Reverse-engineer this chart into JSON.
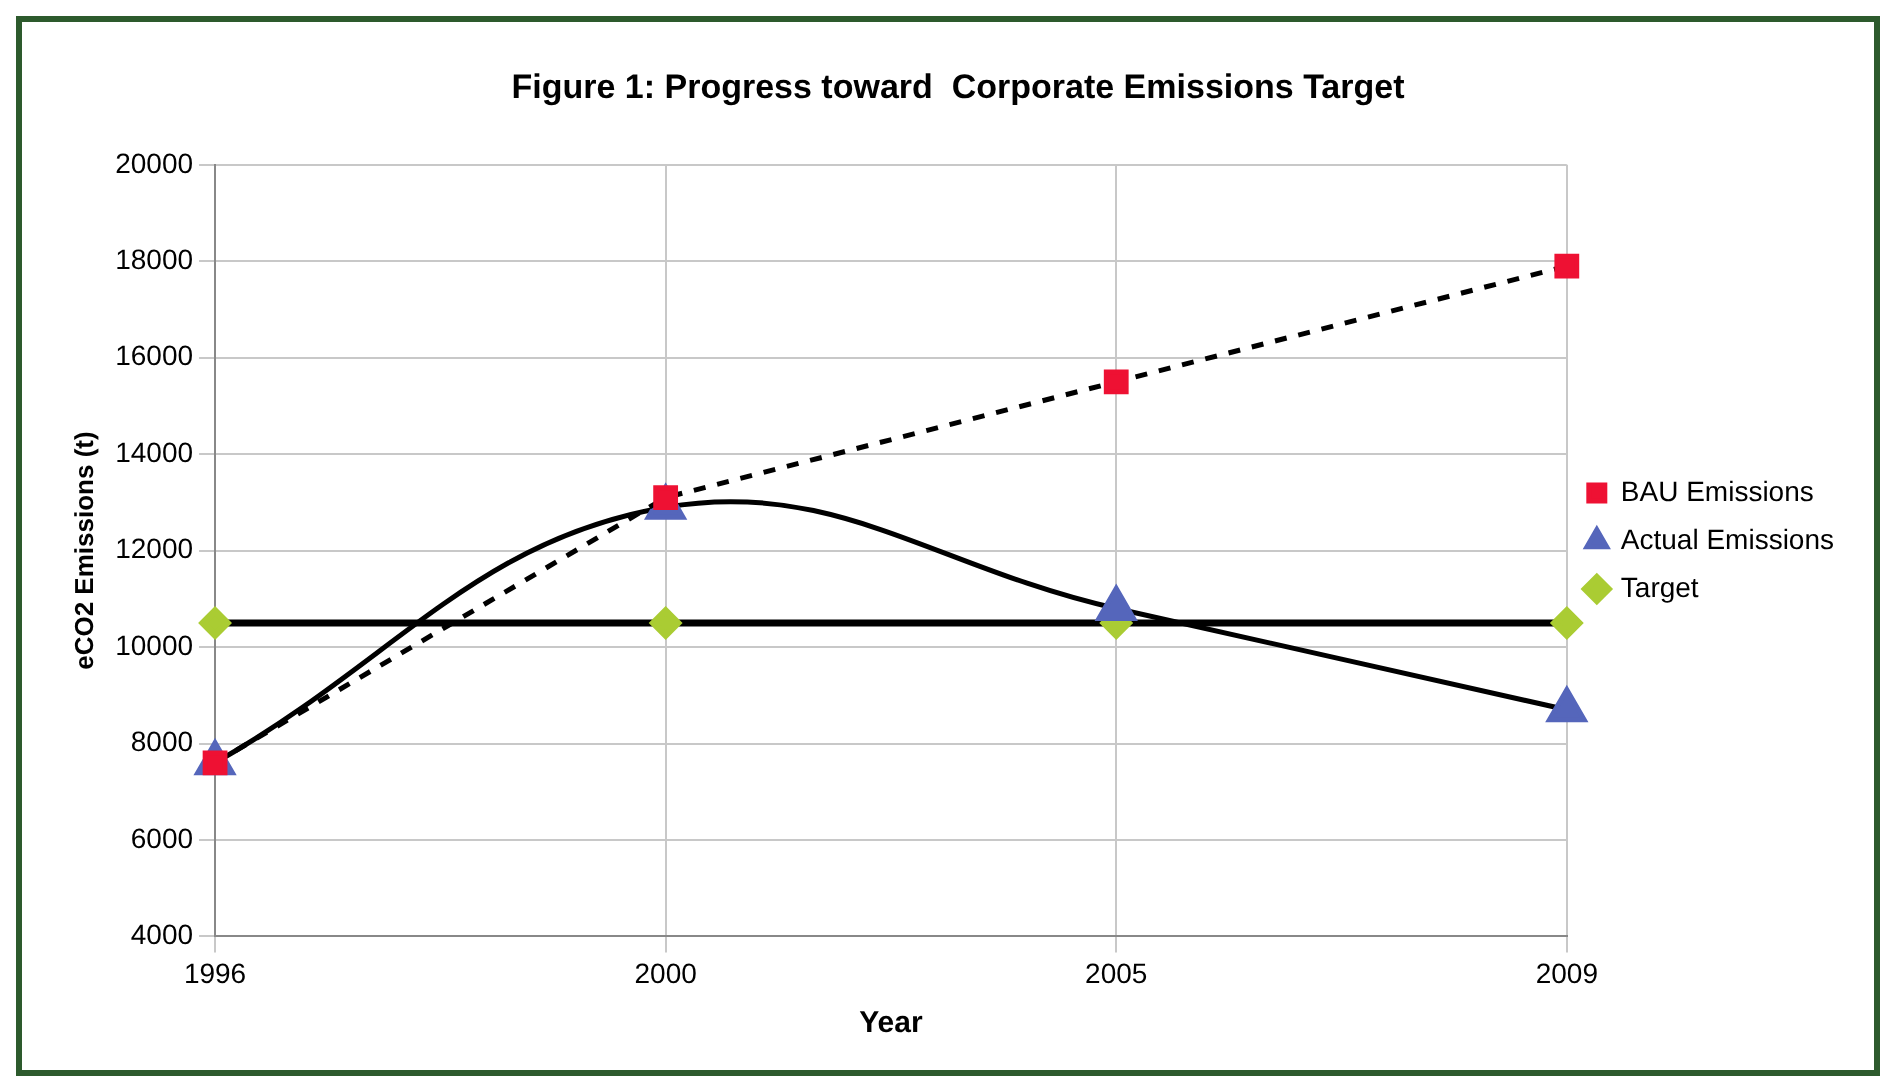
{
  "chart_data": {
    "type": "line",
    "title": "Figure 1: Progress toward  Corporate Emissions Target",
    "xlabel": "Year",
    "ylabel": "eCO2 Emissions (t)",
    "categories": [
      "1996",
      "2000",
      "2005",
      "2009"
    ],
    "series": [
      {
        "name": "BAU Emissions",
        "color": "#ee1133",
        "values": [
          7600,
          13100,
          15500,
          17900
        ],
        "marker": "square",
        "line_style": "dashed"
      },
      {
        "name": "Actual Emissions",
        "color": "#5566bb",
        "values": [
          7600,
          12900,
          10800,
          8700
        ],
        "marker": "triangle",
        "line_style": "solid"
      },
      {
        "name": "Target",
        "color": "#aacc33",
        "values": [
          10500,
          10500,
          10500,
          10500
        ],
        "marker": "diamond",
        "line_style": "solid"
      }
    ],
    "ylim": [
      4000,
      20000
    ],
    "yticks": [
      4000,
      6000,
      8000,
      10000,
      12000,
      14000,
      16000,
      18000,
      20000
    ],
    "grid": true,
    "legend": "right"
  }
}
